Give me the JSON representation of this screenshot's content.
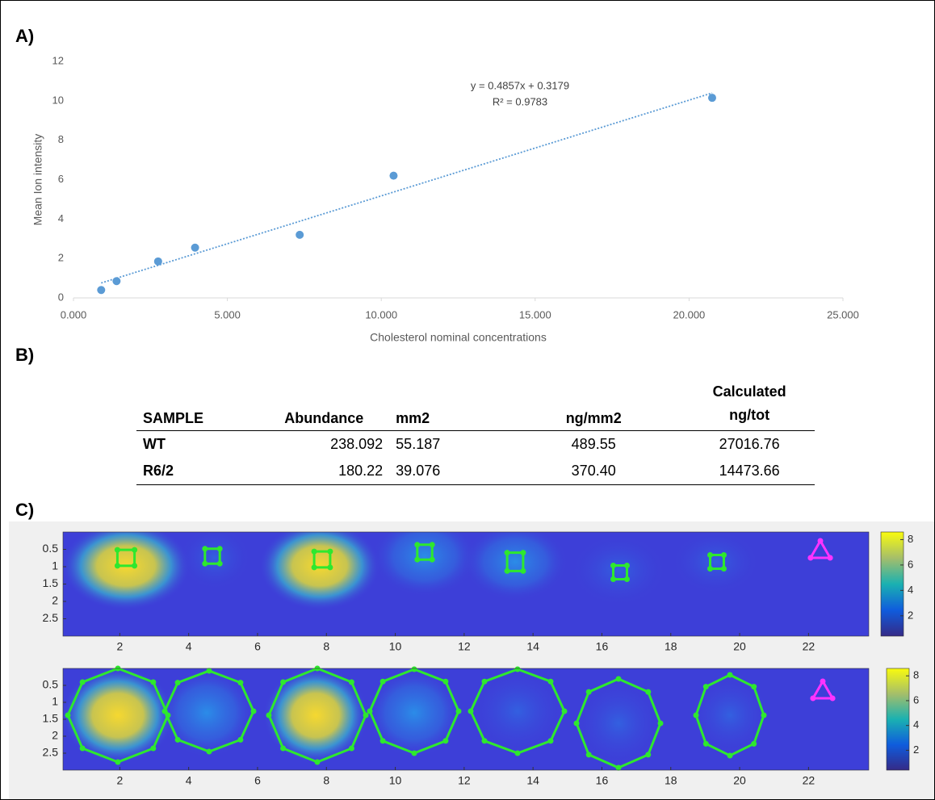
{
  "panel_labels": [
    "A)",
    "B)",
    "C)"
  ],
  "chart_data": [
    {
      "type": "scatter",
      "x": [
        0.9,
        1.4,
        2.75,
        3.95,
        7.35,
        10.4,
        20.75
      ],
      "values": [
        0.4,
        0.85,
        1.85,
        2.55,
        3.2,
        6.2,
        10.15
      ],
      "color": "#5b9bd5",
      "xlabel": "Cholesterol nominal concentrations",
      "ylabel": "Mean Ion intensity",
      "xlim": [
        0,
        25
      ],
      "xticks": [
        {
          "value": 0,
          "label": "0.000"
        },
        {
          "value": 5,
          "label": "5.000"
        },
        {
          "value": 10,
          "label": "10.000"
        },
        {
          "value": 15,
          "label": "15.000"
        },
        {
          "value": 20,
          "label": "20.000"
        },
        {
          "value": 25,
          "label": "25.000"
        }
      ],
      "ylim": [
        0,
        12
      ],
      "yticks": [
        0,
        2,
        4,
        6,
        8,
        10,
        12
      ],
      "trendline": {
        "slope": 0.4857,
        "intercept": 0.3179,
        "label": "y = 0.4857x + 0.3179",
        "r2_label": "R² = 0.9783"
      }
    },
    {
      "type": "heatmap",
      "xlim": [
        0.35,
        23.75
      ],
      "xticks": [
        2,
        4,
        6,
        8,
        10,
        12,
        14,
        16,
        18,
        20,
        22
      ],
      "ylim": [
        0,
        3
      ],
      "yticks": [
        0.5,
        1,
        1.5,
        2,
        2.5
      ],
      "clim": [
        0.4,
        8.6
      ],
      "cticks": [
        2,
        4,
        6,
        8
      ]
    },
    {
      "type": "heatmap",
      "xlim": [
        0.35,
        23.75
      ],
      "xticks": [
        2,
        4,
        6,
        8,
        10,
        12,
        14,
        16,
        18,
        20,
        22
      ],
      "ylim": [
        0,
        3
      ],
      "yticks": [
        0.5,
        1,
        1.5,
        2,
        2.5
      ],
      "clim": [
        0.4,
        8.6
      ],
      "cticks": [
        2,
        4,
        6,
        8
      ]
    }
  ],
  "table": {
    "header": [
      "SAMPLE",
      "Abundance",
      "mm2",
      "ng/mm2",
      "Calculated ng/tot"
    ],
    "rows": [
      [
        "WT",
        "238.092",
        "55.187",
        "489.55",
        "27016.76"
      ],
      [
        "R6/2",
        "180.22",
        "39.076",
        "370.40",
        "14473.66"
      ]
    ]
  }
}
